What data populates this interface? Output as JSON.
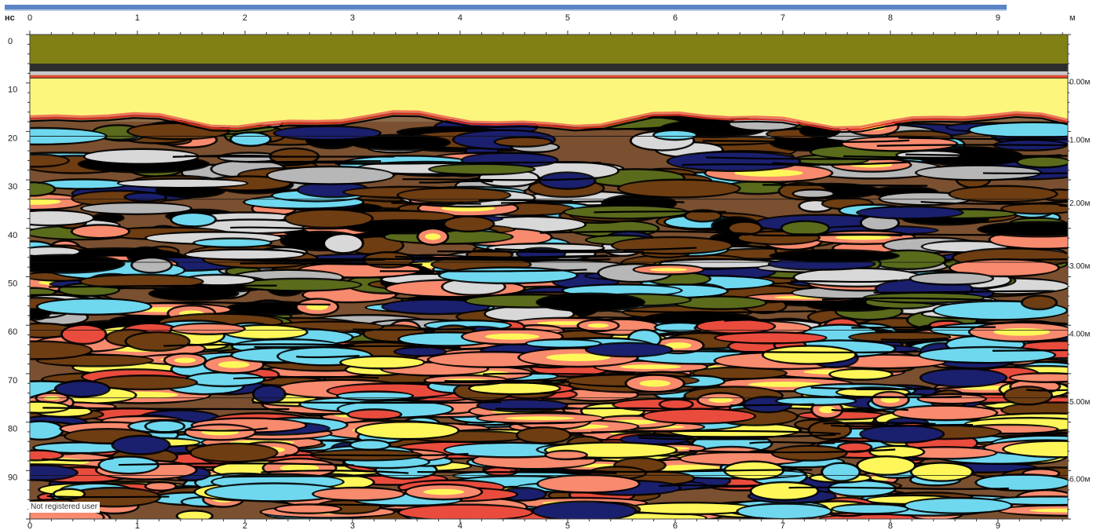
{
  "chart_data": {
    "type": "heatmap",
    "title": "",
    "x_unit_label": "м",
    "y_unit_label": "нс",
    "xlim": [
      0,
      9.65
    ],
    "ylim": [
      0,
      100
    ],
    "x_ticks": [
      "0",
      "1",
      "2",
      "3",
      "4",
      "5",
      "6",
      "7",
      "8",
      "9"
    ],
    "y_ticks": [
      "0",
      "10",
      "20",
      "30",
      "40",
      "50",
      "60",
      "70",
      "80",
      "90"
    ],
    "depth_ticks": [
      "0.00м",
      "1.00м",
      "2.00м",
      "3.00м",
      "4.00м",
      "5.00м",
      "6.00м"
    ],
    "depth_tick_times_ns": [
      9,
      21,
      34,
      47,
      61,
      75,
      91
    ],
    "surface_band_ns": [
      0,
      9
    ],
    "air_wave_band_ns": [
      9,
      18
    ],
    "grid": "horizontal depth lines",
    "colors": {
      "surface": "#808015",
      "air_wave": "#fdf67d",
      "positive_strong": "#f88a6e",
      "positive_peak": "#fff75a",
      "negative_strong": "#1a1f6e",
      "negative_mid": "#6fd8ef",
      "neutral_brown": "#6e3d12",
      "neutral_grey": "#b7b7b7",
      "contour": "#000000"
    }
  },
  "watermark": "Not registered user"
}
